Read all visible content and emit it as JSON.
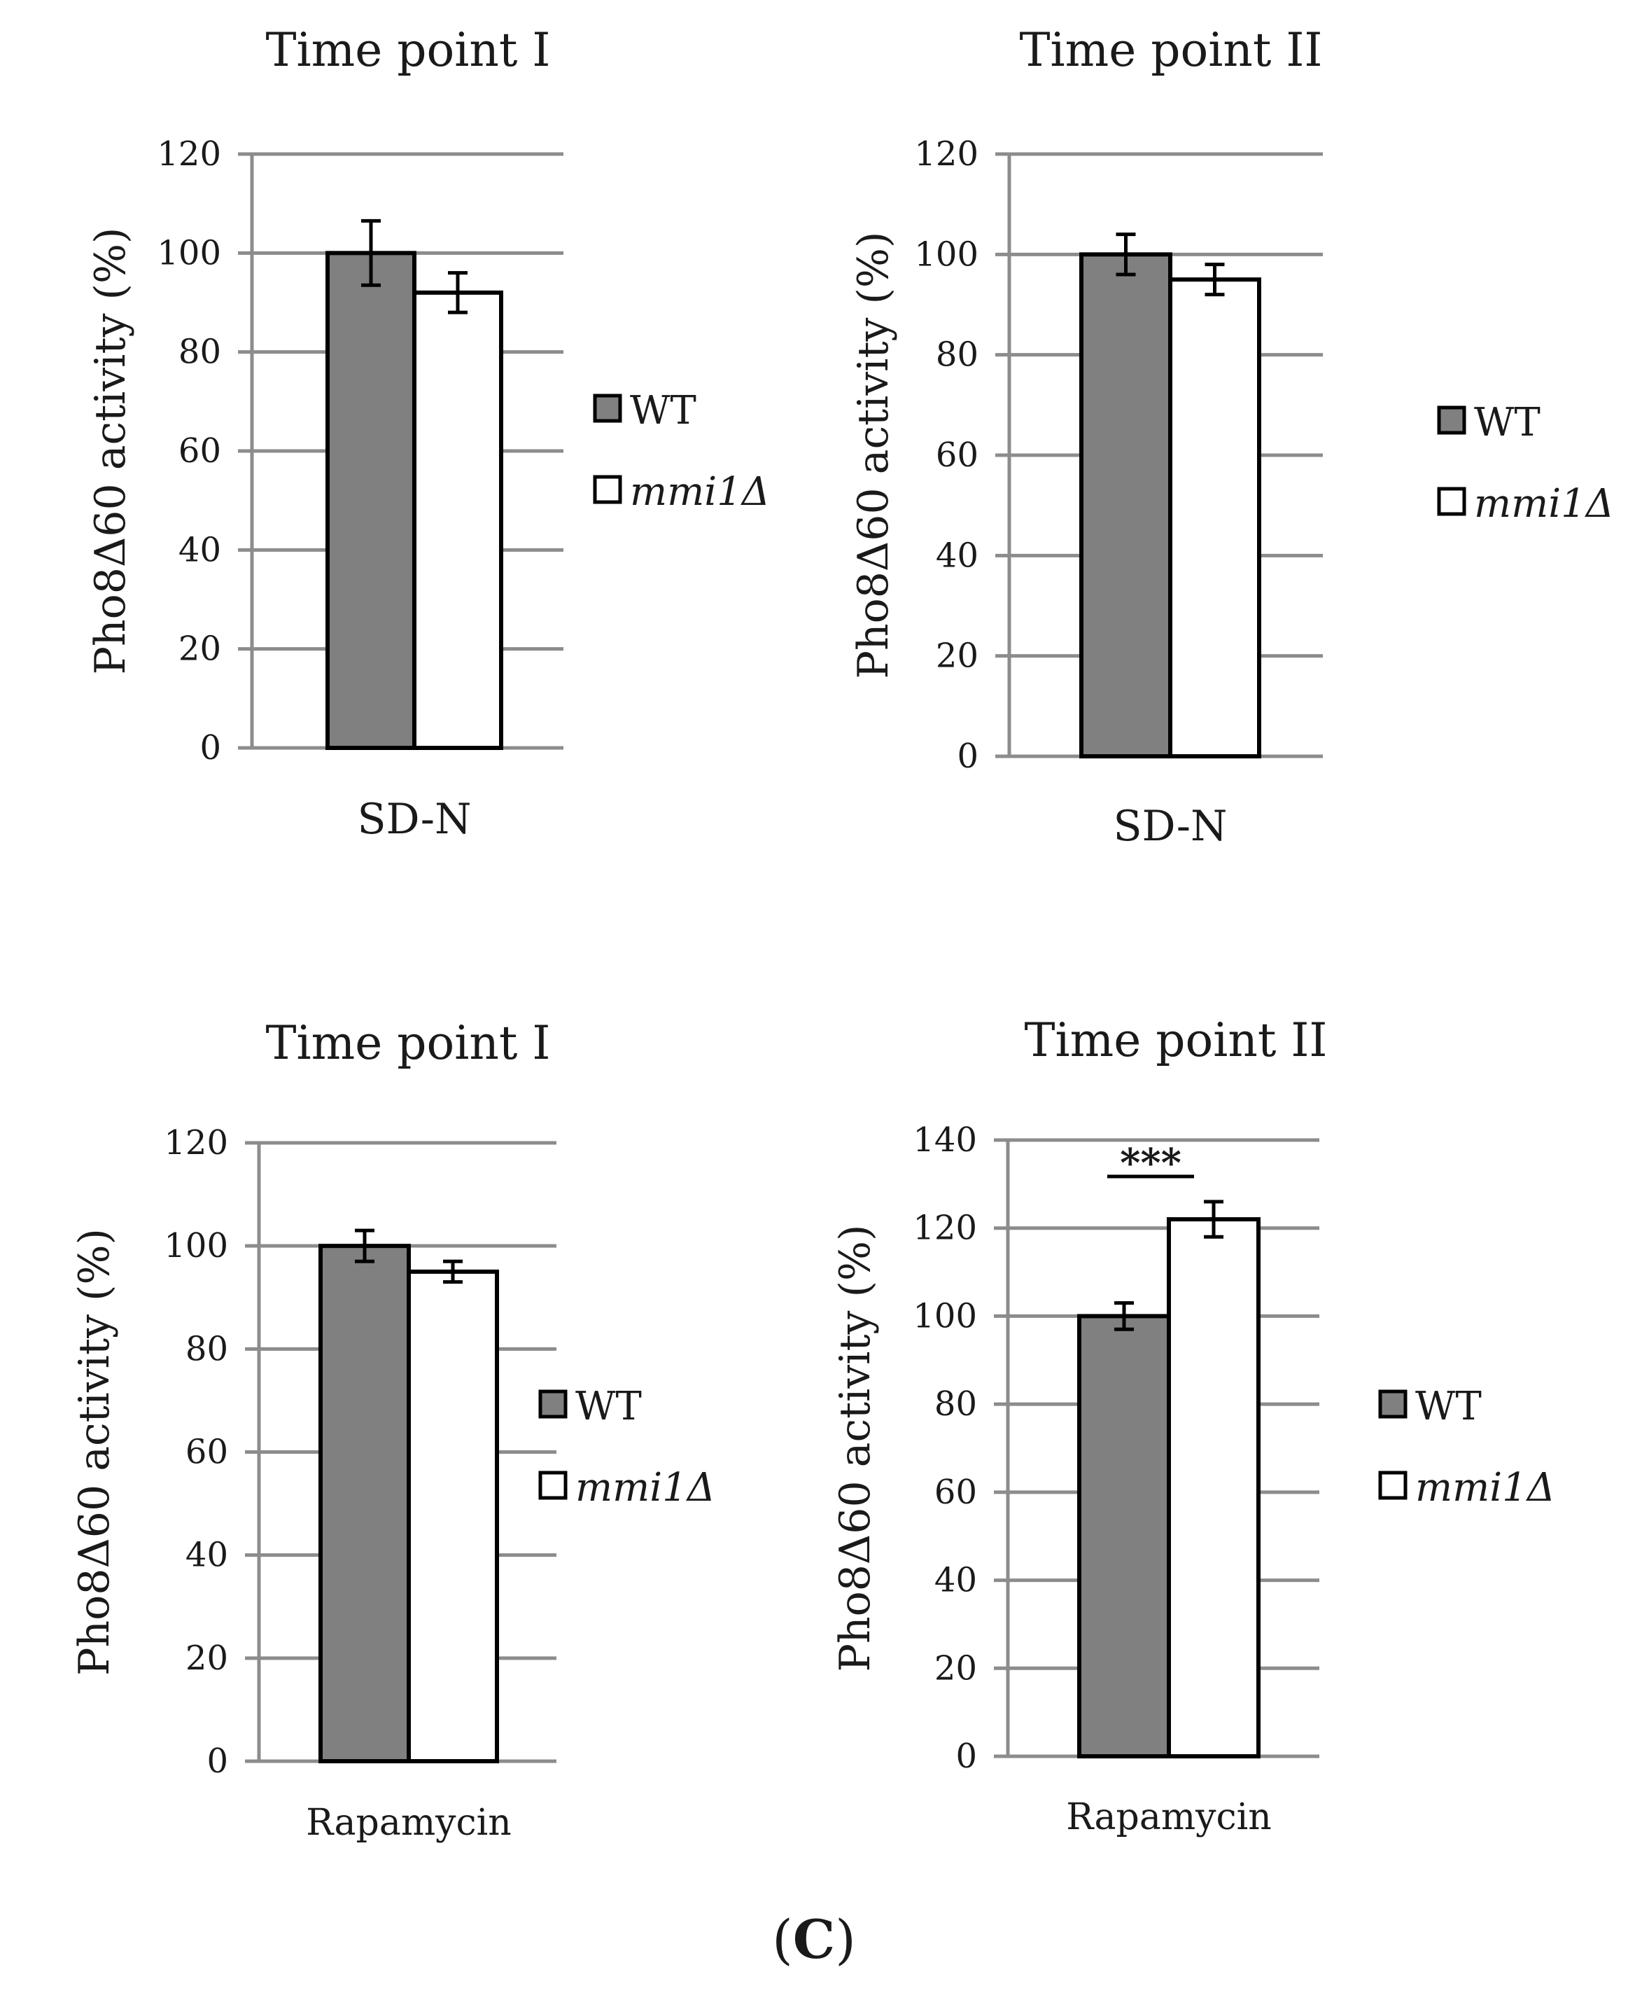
{
  "panel_label": {
    "open": "(",
    "letter": "C",
    "close": ")"
  },
  "colors": {
    "wt": "#808080",
    "mmi1": "#ffffff",
    "grid": "#8c8c8c",
    "outline": "#000000"
  },
  "chart_data": [
    {
      "type": "bar",
      "title": "Time point I",
      "ylabel": "Pho8Δ60 activity (%)",
      "categories": [
        "SD-N"
      ],
      "ylim": [
        0,
        120
      ],
      "yticks": [
        0,
        20,
        40,
        60,
        80,
        100,
        120
      ],
      "series": [
        {
          "name": "WT",
          "values": [
            100
          ],
          "errors": [
            6.5
          ]
        },
        {
          "name": "mmi1Δ",
          "values": [
            92
          ],
          "errors": [
            4
          ]
        }
      ],
      "legend": {
        "placement": "right",
        "entries": [
          "WT",
          "mmi1Δ"
        ]
      }
    },
    {
      "type": "bar",
      "title": "Time point II",
      "ylabel": "Pho8Δ60 activity (%)",
      "categories": [
        "SD-N"
      ],
      "ylim": [
        0,
        120
      ],
      "yticks": [
        0,
        20,
        40,
        60,
        80,
        100,
        120
      ],
      "series": [
        {
          "name": "WT",
          "values": [
            100
          ],
          "errors": [
            4
          ]
        },
        {
          "name": "mmi1Δ",
          "values": [
            95
          ],
          "errors": [
            3
          ]
        }
      ],
      "legend": {
        "placement": "right",
        "entries": [
          "WT",
          "mmi1Δ"
        ]
      }
    },
    {
      "type": "bar",
      "title": "Time point I",
      "ylabel": "Pho8Δ60 activity (%)",
      "categories": [
        "Rapamycin"
      ],
      "ylim": [
        0,
        120
      ],
      "yticks": [
        0,
        20,
        40,
        60,
        80,
        100,
        120
      ],
      "series": [
        {
          "name": "WT",
          "values": [
            100
          ],
          "errors": [
            3
          ]
        },
        {
          "name": "mmi1Δ",
          "values": [
            95
          ],
          "errors": [
            2
          ]
        }
      ],
      "legend": {
        "placement": "right",
        "entries": [
          "WT",
          "mmi1Δ"
        ]
      }
    },
    {
      "type": "bar",
      "title": "Time point II",
      "ylabel": "Pho8Δ60 activity (%)",
      "categories": [
        "Rapamycin"
      ],
      "ylim": [
        0,
        140
      ],
      "yticks": [
        0,
        20,
        40,
        60,
        80,
        100,
        120,
        140
      ],
      "series": [
        {
          "name": "WT",
          "values": [
            100
          ],
          "errors": [
            3
          ]
        },
        {
          "name": "mmi1Δ",
          "values": [
            122
          ],
          "errors": [
            4
          ]
        }
      ],
      "legend": {
        "placement": "right",
        "entries": [
          "WT",
          "mmi1Δ"
        ]
      },
      "annotation": "***"
    }
  ]
}
